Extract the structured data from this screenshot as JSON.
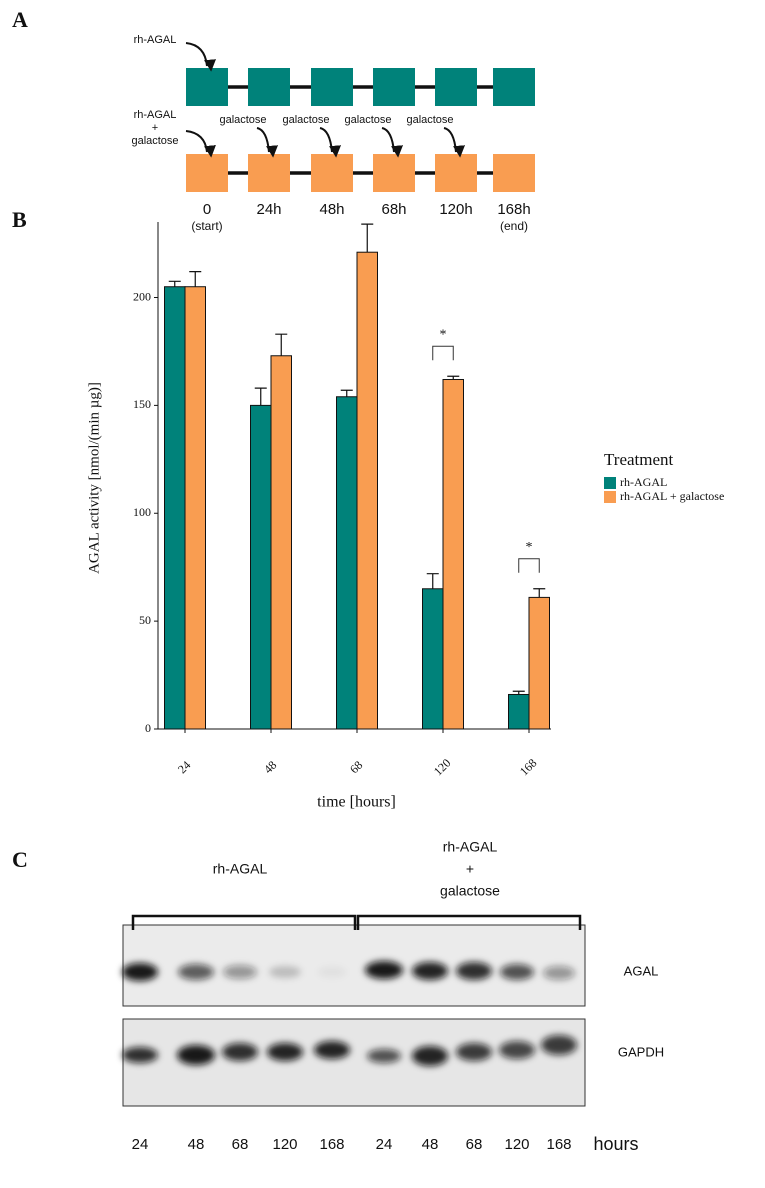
{
  "panel_a": {
    "label": "A",
    "row1": {
      "label": "rh-AGAL",
      "color": "#00827a"
    },
    "row2": {
      "label": [
        "rh-AGAL",
        "+",
        "galactose"
      ],
      "color": "#f99d51",
      "additions": [
        "galactose",
        "galactose",
        "galactose",
        "galactose"
      ]
    },
    "timepoints": [
      "0",
      "24h",
      "48h",
      "68h",
      "120h",
      "168h"
    ],
    "start_note": "(start)",
    "end_note": "(end)"
  },
  "chart_data": {
    "type": "bar",
    "panel_label": "B",
    "x_label": "time [hours]",
    "y_label": "AGAL activity [nmol/(min µg)]",
    "categories": [
      "24",
      "48",
      "68",
      "120",
      "168"
    ],
    "series": [
      {
        "name": "rh-AGAL",
        "color": "#00827a",
        "values": [
          205,
          150,
          154,
          65,
          16
        ],
        "errors": [
          2.5,
          8,
          3,
          7,
          1.5
        ]
      },
      {
        "name": "rh-AGAL + galactose",
        "color": "#f99d51",
        "values": [
          205,
          173,
          221,
          162,
          61
        ],
        "errors": [
          7,
          10,
          13,
          1.5,
          4
        ]
      }
    ],
    "significance": [
      null,
      null,
      null,
      "*",
      "*"
    ],
    "ylim": [
      0,
      235
    ],
    "yticks": [
      0,
      50,
      100,
      150,
      200
    ],
    "legend_title": "Treatment",
    "legend": "right",
    "grid": false
  },
  "panel_c": {
    "label": "C",
    "groups": [
      {
        "label": [
          "rh-AGAL"
        ]
      },
      {
        "label": [
          "rh-AGAL",
          "+",
          "galactose"
        ]
      }
    ],
    "blots": [
      "AGAL",
      "GAPDH"
    ],
    "lanes": [
      "24",
      "48",
      "68",
      "120",
      "168",
      "24",
      "48",
      "68",
      "120",
      "168"
    ],
    "lane_unit": "hours"
  }
}
